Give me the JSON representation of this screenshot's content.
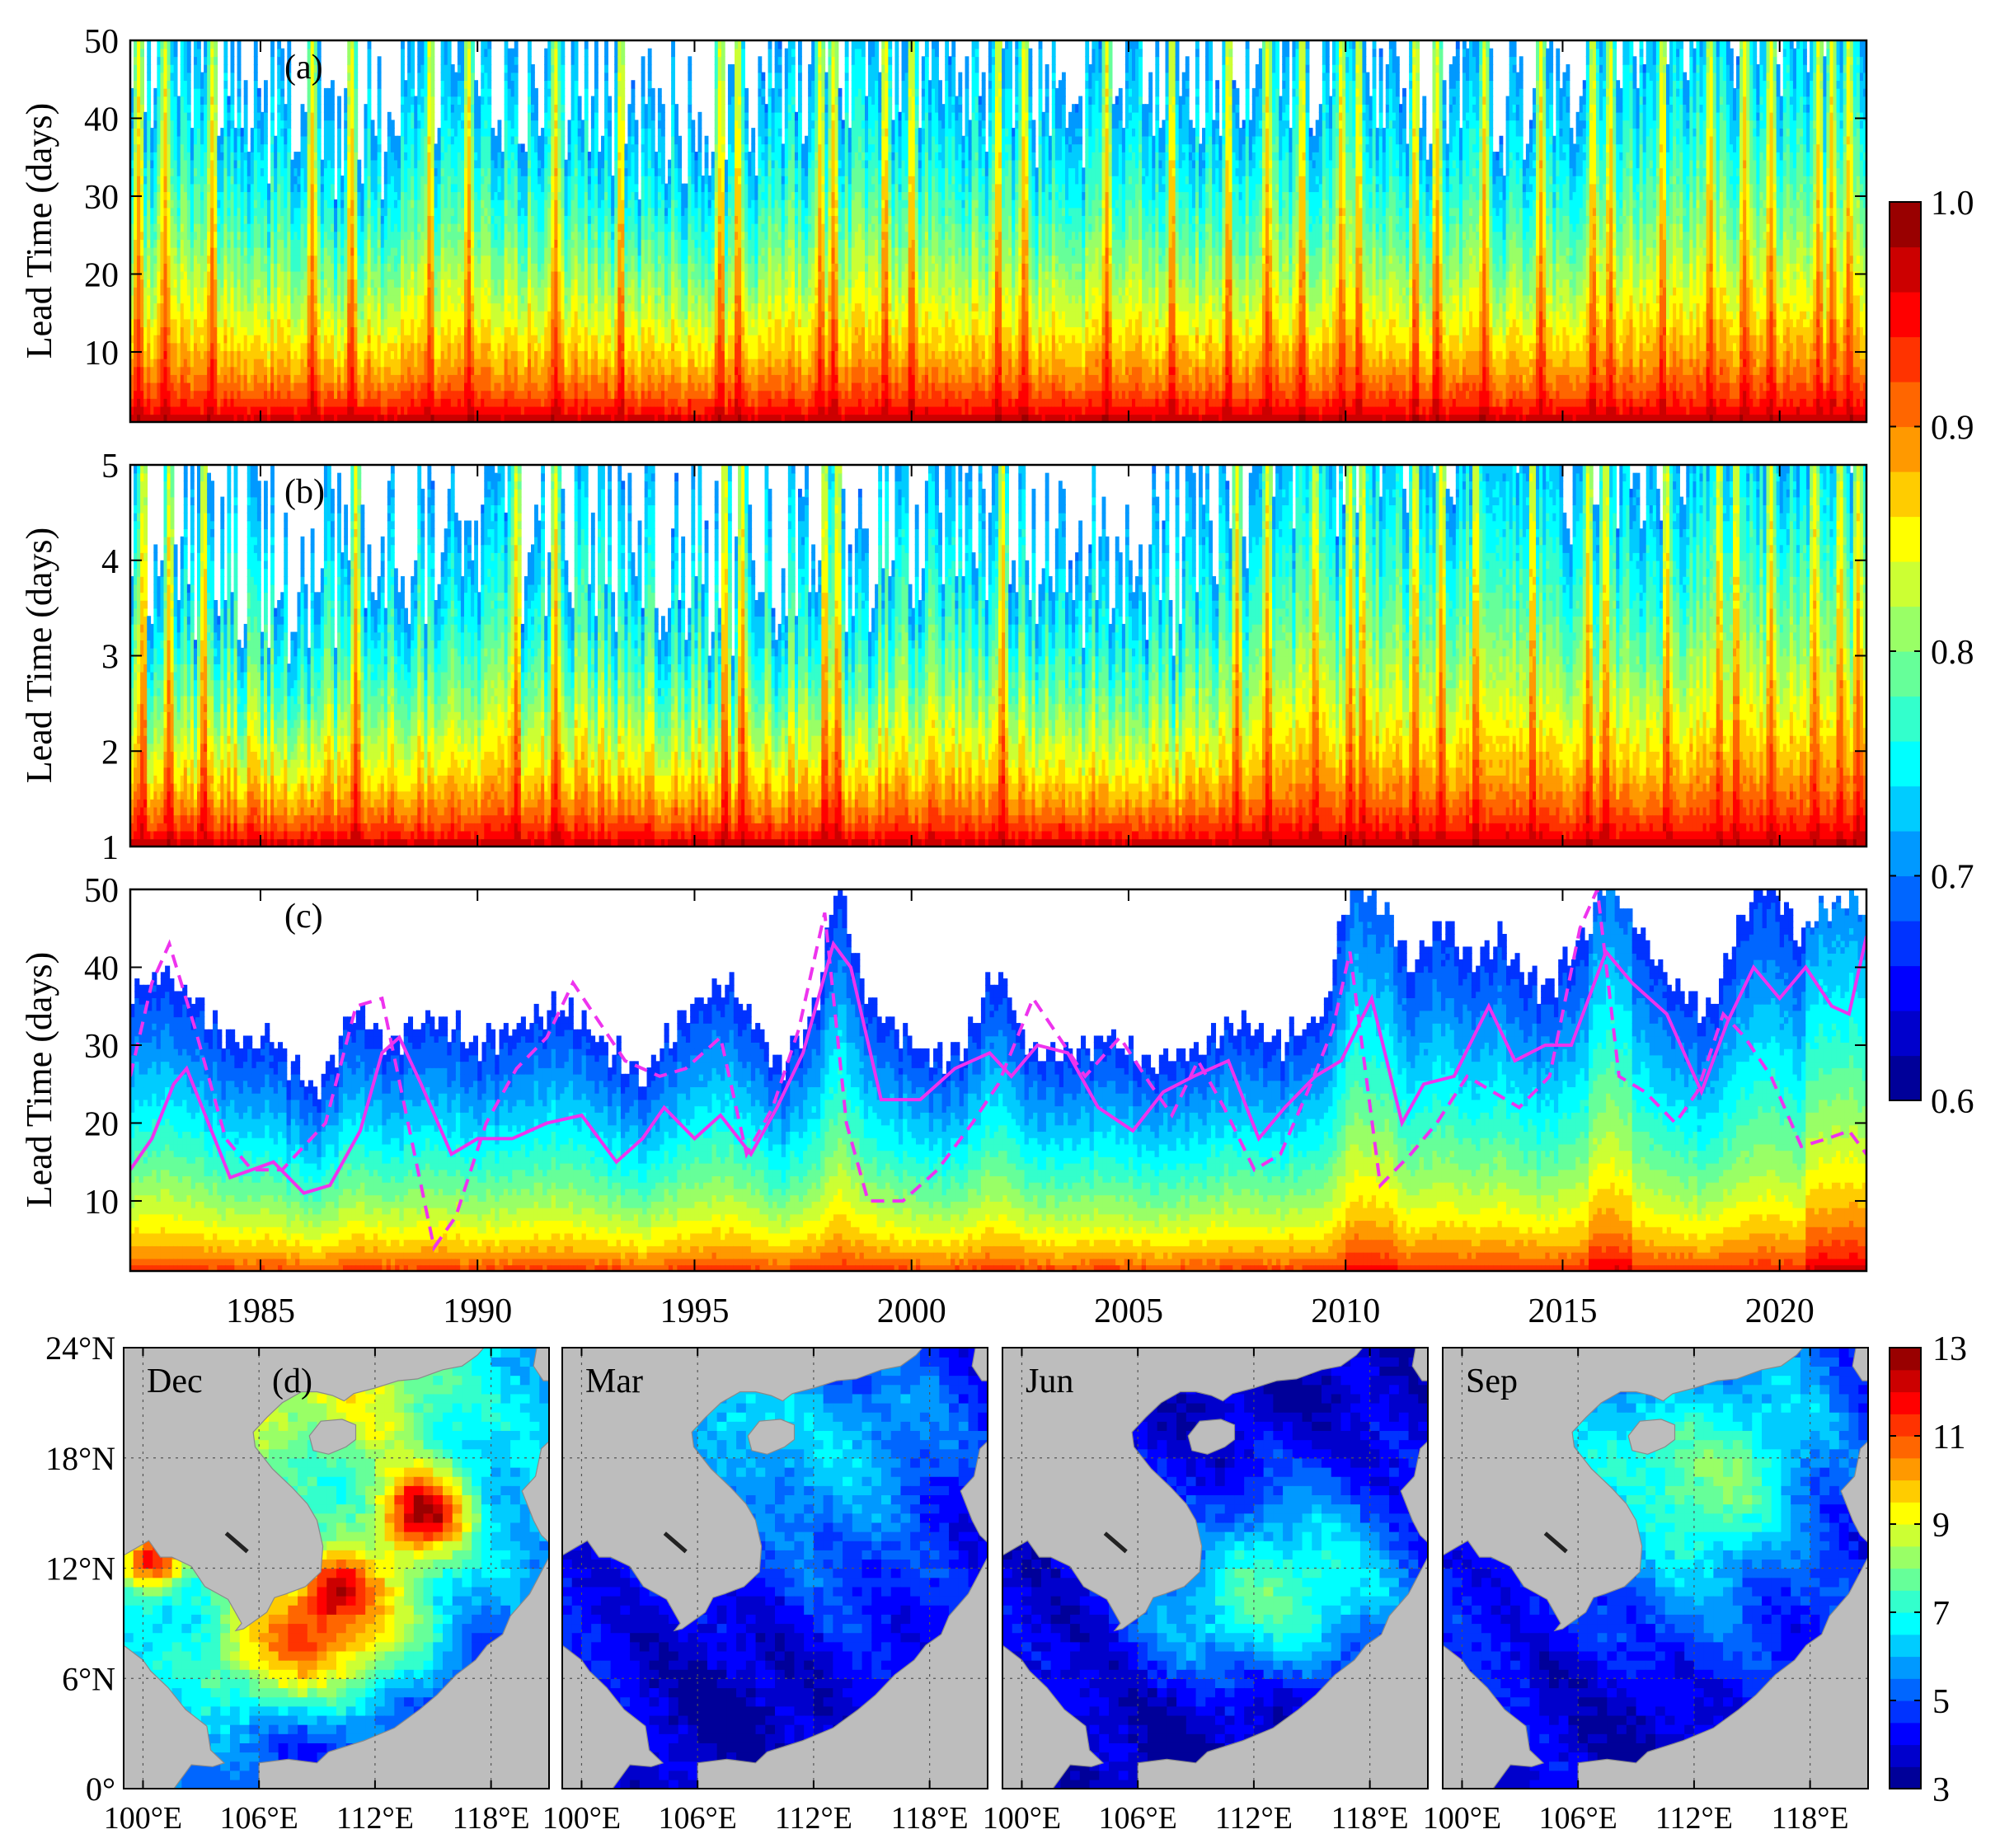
{
  "chart_data": [
    {
      "type": "heatmap",
      "panel_label": "(a)",
      "ylabel": "Lead Time (days)",
      "ylim": [
        1,
        50
      ],
      "yticks": [
        "10",
        "20",
        "30",
        "40",
        "50"
      ],
      "x_range_years": [
        1982,
        2022
      ],
      "seed": 11,
      "depth_unit": 0.72,
      "depth_jitter": 0.45,
      "long_waves": [
        [
          0.07,
          9.0,
          0.4
        ],
        [
          0.05,
          22.0,
          1.7
        ]
      ],
      "trend": [
        [
          1982,
          0.0
        ],
        [
          2007,
          0.0
        ],
        [
          2015,
          0.1
        ],
        [
          2022,
          0.22
        ]
      ],
      "spikes": [
        1982.2,
        1982.8,
        1983.9,
        1986.2,
        1987.1,
        1988.9,
        1989.8,
        1991.8,
        1993.3,
        1995.6,
        1996.0,
        1997.9,
        1998.2,
        1999.4,
        2000.0,
        2002.0,
        2002.6,
        2004.5,
        2006.0,
        2007.3,
        2008.2,
        2009.0,
        2009.9,
        2010.3,
        2011.6,
        2012.1,
        2013.2,
        2014.5,
        2015.7,
        2016.1,
        2017.3,
        2018.4,
        2019.2,
        2019.8,
        2020.9,
        2021.2,
        2021.6
      ],
      "colorbar": {
        "min": 0.6,
        "max": 1.0,
        "ticks": [
          "0.6",
          "0.7",
          "0.8",
          "0.9",
          "1.0"
        ]
      }
    },
    {
      "type": "heatmap",
      "panel_label": "(b)",
      "ylabel": "Lead Time (days)",
      "ylim": [
        1,
        5
      ],
      "yticks": [
        "1",
        "2",
        "3",
        "4",
        "5"
      ],
      "x_range_years": [
        1982,
        2022
      ],
      "seed": 23,
      "depth_unit": 0.6,
      "depth_jitter": 0.55,
      "long_waves": [
        [
          0.05,
          10.0,
          0.8
        ]
      ],
      "trend": [
        [
          1982,
          0.0
        ],
        [
          2006.8,
          0.0
        ],
        [
          2007.2,
          0.22
        ],
        [
          2015,
          0.28
        ],
        [
          2022,
          0.4
        ]
      ],
      "spikes": [
        1982.3,
        1982.9,
        1983.7,
        1987.2,
        1990.9,
        1991.8,
        1995.7,
        1996.1,
        1998.0,
        1998.3,
        2002.1,
        2007.5,
        2008.2,
        2009.3,
        2010.1,
        2010.4,
        2011.6,
        2012.2,
        2013.0,
        2014.3,
        2015.6,
        2016.0,
        2017.4,
        2018.6,
        2019.0,
        2019.8,
        2020.8,
        2021.4,
        2021.8
      ],
      "colorbar": {
        "min": 0.6,
        "max": 1.0,
        "ticks": [
          "0.6",
          "0.7",
          "0.8",
          "0.9",
          "1.0"
        ]
      }
    },
    {
      "type": "heatmap",
      "panel_label": "(c)",
      "ylabel": "Lead Time (days)",
      "ylim": [
        1,
        50
      ],
      "yticks": [
        "10",
        "20",
        "30",
        "40",
        "50"
      ],
      "x_range_years": [
        1982,
        2022
      ],
      "xticks": [
        "1985",
        "1990",
        "1995",
        "2000",
        "2005",
        "2010",
        "2015",
        "2020"
      ],
      "lead_limit": [
        [
          1982.0,
          36
        ],
        [
          1982.8,
          40
        ],
        [
          1983.5,
          35
        ],
        [
          1984.5,
          30
        ],
        [
          1985.2,
          31
        ],
        [
          1986.2,
          24
        ],
        [
          1987.2,
          34
        ],
        [
          1988.0,
          30
        ],
        [
          1989.0,
          34
        ],
        [
          1990.0,
          30
        ],
        [
          1991.0,
          33
        ],
        [
          1992.0,
          35
        ],
        [
          1993.0,
          30
        ],
        [
          1993.8,
          25
        ],
        [
          1994.8,
          35
        ],
        [
          1995.7,
          38
        ],
        [
          1996.3,
          33
        ],
        [
          1997.0,
          27
        ],
        [
          1997.8,
          35
        ],
        [
          1998.3,
          52
        ],
        [
          1999.0,
          36
        ],
        [
          2000.0,
          30
        ],
        [
          2001.0,
          28
        ],
        [
          2002.0,
          40
        ],
        [
          2002.6,
          30
        ],
        [
          2003.5,
          29
        ],
        [
          2004.5,
          31
        ],
        [
          2005.5,
          28
        ],
        [
          2006.5,
          30
        ],
        [
          2007.5,
          33
        ],
        [
          2008.5,
          30
        ],
        [
          2009.5,
          34
        ],
        [
          2010.2,
          52
        ],
        [
          2010.8,
          48
        ],
        [
          2011.5,
          40
        ],
        [
          2012.2,
          46
        ],
        [
          2013.0,
          40
        ],
        [
          2013.6,
          44
        ],
        [
          2014.5,
          37
        ],
        [
          2015.4,
          42
        ],
        [
          2016.0,
          52
        ],
        [
          2016.6,
          46
        ],
        [
          2017.5,
          38
        ],
        [
          2018.3,
          34
        ],
        [
          2019.0,
          44
        ],
        [
          2019.6,
          52
        ],
        [
          2020.5,
          44
        ],
        [
          2021.2,
          48
        ],
        [
          2022.0,
          48
        ]
      ],
      "solid_line": [
        [
          1982,
          14
        ],
        [
          1982.5,
          18
        ],
        [
          1983,
          25
        ],
        [
          1983.3,
          27
        ],
        [
          1983.8,
          20
        ],
        [
          1984.3,
          13
        ],
        [
          1984.8,
          14
        ],
        [
          1985.3,
          15
        ],
        [
          1986.0,
          11
        ],
        [
          1986.6,
          12
        ],
        [
          1987.3,
          19
        ],
        [
          1987.8,
          29
        ],
        [
          1988.2,
          31
        ],
        [
          1988.7,
          25
        ],
        [
          1989.4,
          16
        ],
        [
          1990.0,
          18
        ],
        [
          1990.8,
          18
        ],
        [
          1991.6,
          20
        ],
        [
          1992.4,
          21
        ],
        [
          1993.2,
          15
        ],
        [
          1993.8,
          18
        ],
        [
          1994.3,
          22
        ],
        [
          1995.0,
          18
        ],
        [
          1995.6,
          21
        ],
        [
          1996.3,
          16
        ],
        [
          1996.9,
          22
        ],
        [
          1997.5,
          29
        ],
        [
          1998.2,
          43
        ],
        [
          1998.6,
          40
        ],
        [
          1999.3,
          23
        ],
        [
          2000.2,
          23
        ],
        [
          2001.0,
          27
        ],
        [
          2001.8,
          29
        ],
        [
          2002.3,
          26
        ],
        [
          2002.9,
          30
        ],
        [
          2003.6,
          29
        ],
        [
          2004.3,
          22
        ],
        [
          2005.1,
          19
        ],
        [
          2005.8,
          24
        ],
        [
          2006.5,
          26
        ],
        [
          2007.3,
          28
        ],
        [
          2008.0,
          18
        ],
        [
          2008.6,
          22
        ],
        [
          2009.3,
          26
        ],
        [
          2009.9,
          28
        ],
        [
          2010.6,
          36
        ],
        [
          2011.3,
          20
        ],
        [
          2011.8,
          25
        ],
        [
          2012.5,
          26
        ],
        [
          2013.3,
          35
        ],
        [
          2013.9,
          28
        ],
        [
          2014.6,
          30
        ],
        [
          2015.2,
          30
        ],
        [
          2016.0,
          42
        ],
        [
          2016.6,
          38
        ],
        [
          2017.4,
          34
        ],
        [
          2018.2,
          24
        ],
        [
          2018.8,
          33
        ],
        [
          2019.4,
          40
        ],
        [
          2020.0,
          36
        ],
        [
          2020.6,
          40
        ],
        [
          2021.2,
          35
        ],
        [
          2021.6,
          34
        ],
        [
          2022.0,
          44
        ]
      ],
      "dashed_line": [
        [
          1982,
          26
        ],
        [
          1982.5,
          38
        ],
        [
          1982.9,
          43
        ],
        [
          1983.5,
          32
        ],
        [
          1984.2,
          18
        ],
        [
          1984.8,
          14
        ],
        [
          1985.5,
          14
        ],
        [
          1986.5,
          20
        ],
        [
          1987.2,
          35
        ],
        [
          1987.8,
          36
        ],
        [
          1988.4,
          20
        ],
        [
          1989.0,
          4
        ],
        [
          1989.5,
          8
        ],
        [
          1990.2,
          20
        ],
        [
          1990.9,
          27
        ],
        [
          1991.6,
          31
        ],
        [
          1992.2,
          38
        ],
        [
          1992.8,
          33
        ],
        [
          1993.4,
          28
        ],
        [
          1994.2,
          26
        ],
        [
          1994.8,
          27
        ],
        [
          1995.6,
          31
        ],
        [
          1996.2,
          16
        ],
        [
          1996.8,
          22
        ],
        [
          1997.4,
          32
        ],
        [
          1998.0,
          47
        ],
        [
          1998.5,
          20
        ],
        [
          1999.0,
          10
        ],
        [
          1999.8,
          10
        ],
        [
          2000.6,
          14
        ],
        [
          2001.4,
          20
        ],
        [
          2002.0,
          25
        ],
        [
          2002.8,
          36
        ],
        [
          2003.4,
          31
        ],
        [
          2004.0,
          26
        ],
        [
          2004.8,
          31
        ],
        [
          2005.5,
          25
        ],
        [
          2006.0,
          21
        ],
        [
          2006.6,
          28
        ],
        [
          2007.2,
          22
        ],
        [
          2007.9,
          14
        ],
        [
          2008.5,
          16
        ],
        [
          2009.2,
          25
        ],
        [
          2009.7,
          32
        ],
        [
          2010.1,
          42
        ],
        [
          2010.8,
          12
        ],
        [
          2011.5,
          16
        ],
        [
          2012.1,
          20
        ],
        [
          2012.8,
          26
        ],
        [
          2013.4,
          24
        ],
        [
          2014.0,
          22
        ],
        [
          2014.7,
          26
        ],
        [
          2015.4,
          45
        ],
        [
          2015.8,
          50
        ],
        [
          2016.3,
          26
        ],
        [
          2016.9,
          24
        ],
        [
          2017.6,
          20
        ],
        [
          2018.1,
          24
        ],
        [
          2018.7,
          34
        ],
        [
          2019.2,
          31
        ],
        [
          2019.8,
          26
        ],
        [
          2020.5,
          17
        ],
        [
          2021.1,
          18
        ],
        [
          2021.6,
          19
        ],
        [
          2022.0,
          16
        ]
      ],
      "colorbar": {
        "min": 0.6,
        "max": 1.0,
        "ticks": [
          "0.6",
          "0.7",
          "0.8",
          "0.9",
          "1.0"
        ]
      }
    },
    {
      "type": "heatmap",
      "panel_label": "(d)",
      "maps": [
        {
          "month": "Dec",
          "seed": 3,
          "base": 6.2,
          "blobs": [
            [
              15.5,
              15.0,
              1.6,
              6.0
            ],
            [
              12.5,
              9.0,
              3.2,
              3.5
            ],
            [
              8.0,
              7.5,
              2.8,
              3.5
            ],
            [
              13.0,
              21.0,
              3.0,
              2.5
            ],
            [
              6.0,
              21.5,
              3.0,
              2.5
            ],
            [
              1.5,
              12.5,
              1.2,
              6.0
            ],
            [
              11.0,
              11.0,
              1.2,
              3.0
            ],
            [
              18.0,
              5.0,
              4.0,
              -2.0
            ],
            [
              9.0,
              2.0,
              3.5,
              -2.0
            ]
          ]
        },
        {
          "month": "Mar",
          "seed": 5,
          "base": 4.3,
          "blobs": [
            [
              9.0,
              20.5,
              2.5,
              2.0
            ],
            [
              13.0,
              17.0,
              3.0,
              1.2
            ],
            [
              17.0,
              20.0,
              3.0,
              1.2
            ],
            [
              14.0,
              12.0,
              3.0,
              0.6
            ],
            [
              9.0,
              4.0,
              4.0,
              -1.0
            ]
          ]
        },
        {
          "month": "Jun",
          "seed": 7,
          "base": 3.9,
          "blobs": [
            [
              13.0,
              10.0,
              3.0,
              2.6
            ],
            [
              18.0,
              11.0,
              3.0,
              2.0
            ],
            [
              9.0,
              9.0,
              2.5,
              1.2
            ],
            [
              15.0,
              15.0,
              3.0,
              1.0
            ],
            [
              10.0,
              3.0,
              4.0,
              -0.6
            ],
            [
              14.0,
              22.0,
              3.0,
              -0.5
            ]
          ]
        },
        {
          "month": "Sep",
          "seed": 9,
          "base": 4.5,
          "blobs": [
            [
              14.0,
              16.0,
              3.0,
              3.0
            ],
            [
              9.0,
              19.0,
              2.5,
              2.0
            ],
            [
              17.0,
              21.0,
              3.0,
              1.5
            ],
            [
              12.0,
              10.0,
              3.0,
              1.0
            ],
            [
              9.0,
              4.0,
              4.0,
              -1.0
            ]
          ]
        }
      ],
      "xticks": [
        "100°E",
        "106°E",
        "112°E",
        "118°E"
      ],
      "yticks": [
        "0°",
        "6°N",
        "12°N",
        "18°N",
        "24°N"
      ],
      "lon_range": [
        99,
        121
      ],
      "lat_range": [
        0,
        24
      ],
      "colorbar": {
        "min": 3,
        "max": 13,
        "ticks": [
          "3",
          "5",
          "7",
          "9",
          "11",
          "13"
        ]
      }
    }
  ]
}
